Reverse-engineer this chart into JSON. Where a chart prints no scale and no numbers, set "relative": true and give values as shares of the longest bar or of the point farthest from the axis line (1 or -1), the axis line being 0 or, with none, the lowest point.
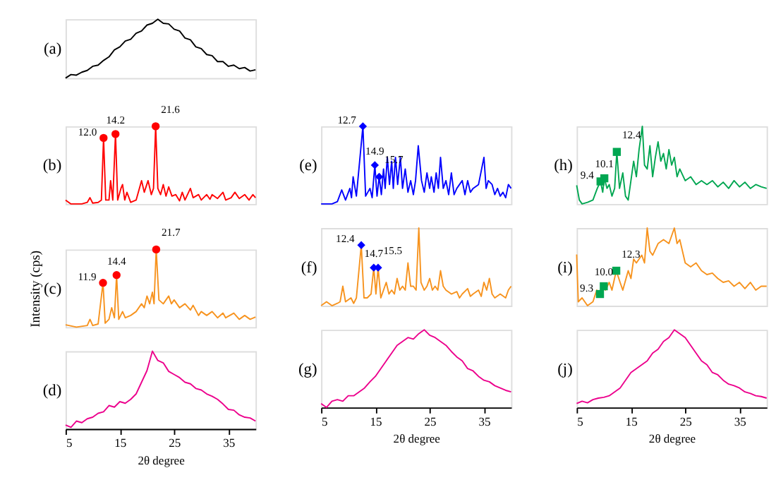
{
  "chart_data": [
    {
      "type": "line",
      "title": "(a)",
      "relative": true,
      "tick_labels": false,
      "xlim": [
        5,
        40
      ],
      "series": [
        {
          "color": "#000000",
          "x": [
            5,
            6,
            7,
            8,
            9,
            10,
            11,
            12,
            13,
            14,
            15,
            16,
            17,
            18,
            19,
            20,
            21,
            22,
            23,
            24,
            25,
            26,
            27,
            28,
            29,
            30,
            31,
            32,
            33,
            34,
            35,
            36,
            37,
            38,
            39,
            40
          ],
          "values": [
            0.0,
            0.06,
            0.05,
            0.1,
            0.13,
            0.2,
            0.22,
            0.3,
            0.36,
            0.48,
            0.53,
            0.63,
            0.66,
            0.76,
            0.8,
            0.9,
            0.93,
            1.0,
            0.93,
            0.92,
            0.83,
            0.8,
            0.68,
            0.65,
            0.53,
            0.5,
            0.4,
            0.38,
            0.28,
            0.28,
            0.2,
            0.22,
            0.16,
            0.18,
            0.12,
            0.14
          ]
        }
      ]
    },
    {
      "type": "line",
      "title": "(b)",
      "relative": true,
      "tick_labels": false,
      "xlim": [
        5,
        40
      ],
      "series": [
        {
          "color": "#ff0000",
          "x": [
            5,
            6,
            8,
            9,
            9.5,
            10,
            11,
            11.6,
            12.0,
            12.4,
            13,
            13.3,
            13.7,
            14.2,
            14.6,
            15.2,
            15.5,
            15.9,
            16.3,
            17,
            18,
            18.6,
            19,
            19.5,
            20.2,
            20.8,
            21.2,
            21.6,
            22,
            22.5,
            23,
            23.5,
            24,
            24.6,
            25.3,
            26,
            26.5,
            27,
            28,
            28.5,
            29.5,
            30,
            31,
            31.6,
            32,
            33,
            34,
            34.5,
            35.5,
            36.2,
            37,
            38,
            38.8,
            39.5,
            40
          ],
          "values": [
            0.05,
            0.0,
            0.0,
            0.02,
            0.08,
            0.01,
            0.02,
            0.05,
            0.85,
            0.05,
            0.05,
            0.3,
            0.05,
            0.9,
            0.05,
            0.2,
            0.25,
            0.05,
            0.15,
            0.02,
            0.05,
            0.2,
            0.3,
            0.15,
            0.3,
            0.12,
            0.2,
            1.0,
            0.2,
            0.12,
            0.25,
            0.1,
            0.22,
            0.1,
            0.12,
            0.04,
            0.15,
            0.05,
            0.2,
            0.08,
            0.12,
            0.05,
            0.12,
            0.06,
            0.12,
            0.07,
            0.15,
            0.05,
            0.08,
            0.15,
            0.07,
            0.12,
            0.05,
            0.12,
            0.08
          ]
        },
        {
          "type": "scatter",
          "marker": "circle",
          "color": "#ff0000",
          "x": [
            12.0,
            14.2,
            21.6
          ],
          "values": [
            0.85,
            0.9,
            1.0
          ]
        }
      ],
      "annotations": [
        {
          "text": "12.0",
          "x": 12.0,
          "y": 0.85
        },
        {
          "text": "14.2",
          "x": 14.2,
          "y": 0.9
        },
        {
          "text": "21.6",
          "x": 21.6,
          "y": 1.0
        }
      ]
    },
    {
      "type": "line",
      "title": "(c)",
      "relative": true,
      "tick_labels": false,
      "xlim": [
        5,
        40
      ],
      "ylabel": "Intensity (cps)",
      "series": [
        {
          "color": "#f7931e",
          "x": [
            5,
            7,
            9,
            9.5,
            10,
            11,
            11.9,
            12.3,
            13,
            13.5,
            14,
            14.4,
            14.8,
            15.5,
            16,
            17,
            18,
            19,
            19.5,
            20,
            20.5,
            21,
            21.3,
            21.7,
            22.2,
            23,
            24,
            24.5,
            25,
            26,
            27,
            28,
            28.5,
            29.5,
            30,
            31,
            32,
            33,
            34,
            34.5,
            36,
            37,
            38,
            39,
            40
          ],
          "values": [
            0.03,
            0.0,
            0.02,
            0.1,
            0.02,
            0.04,
            0.57,
            0.05,
            0.1,
            0.25,
            0.12,
            0.67,
            0.1,
            0.2,
            0.12,
            0.15,
            0.2,
            0.3,
            0.25,
            0.4,
            0.3,
            0.45,
            0.3,
            1.0,
            0.35,
            0.3,
            0.4,
            0.3,
            0.35,
            0.25,
            0.3,
            0.22,
            0.28,
            0.15,
            0.2,
            0.15,
            0.2,
            0.12,
            0.18,
            0.12,
            0.18,
            0.1,
            0.15,
            0.1,
            0.13
          ]
        },
        {
          "type": "scatter",
          "marker": "circle",
          "color": "#ff0000",
          "x": [
            11.9,
            14.4,
            21.7
          ],
          "values": [
            0.57,
            0.67,
            1.0
          ]
        }
      ],
      "annotations": [
        {
          "text": "11.9",
          "x": 11.9,
          "y": 0.57
        },
        {
          "text": "14.4",
          "x": 14.4,
          "y": 0.67
        },
        {
          "text": "21.7",
          "x": 21.7,
          "y": 1.0
        }
      ]
    },
    {
      "type": "line",
      "title": "(d)",
      "relative": true,
      "tick_labels": "x",
      "xlim": [
        5,
        40
      ],
      "xticks": [
        5,
        15,
        25,
        35
      ],
      "xlabel": "2θ degree",
      "series": [
        {
          "color": "#ec008c",
          "x": [
            5,
            6,
            7,
            8,
            9,
            10,
            11,
            12,
            13,
            14,
            15,
            16,
            17,
            18,
            19,
            20,
            21,
            22,
            23,
            24,
            25,
            26,
            27,
            28,
            29,
            30,
            31,
            32,
            33,
            34,
            35,
            36,
            37,
            38,
            39,
            40
          ],
          "values": [
            0.05,
            0.02,
            0.1,
            0.08,
            0.13,
            0.15,
            0.2,
            0.22,
            0.3,
            0.28,
            0.35,
            0.33,
            0.38,
            0.45,
            0.6,
            0.75,
            1.0,
            0.88,
            0.85,
            0.74,
            0.7,
            0.66,
            0.6,
            0.58,
            0.52,
            0.5,
            0.45,
            0.42,
            0.38,
            0.32,
            0.25,
            0.24,
            0.18,
            0.15,
            0.14,
            0.1
          ]
        }
      ]
    },
    {
      "type": "line",
      "title": "(e)",
      "relative": true,
      "tick_labels": false,
      "xlim": [
        5,
        40
      ],
      "series": [
        {
          "color": "#0000ff",
          "x": [
            5,
            7,
            8,
            8.8,
            9.5,
            10.3,
            10.6,
            10.9,
            11.5,
            12.7,
            13.2,
            14.0,
            14.4,
            14.9,
            15.3,
            15.7,
            16.1,
            16.5,
            16.8,
            17.2,
            17.6,
            18,
            18.3,
            18.7,
            19.1,
            19.6,
            20,
            20.5,
            21,
            21.5,
            22,
            22.4,
            22.9,
            23.5,
            24,
            24.5,
            25,
            25.3,
            25.8,
            26.2,
            26.6,
            27,
            27.5,
            28,
            28.5,
            29,
            29.5,
            30,
            31,
            31.5,
            32,
            32.5,
            33,
            34,
            35,
            35.4,
            35.8,
            36.5,
            37,
            37.5,
            38,
            38.5,
            39,
            39.5,
            40
          ],
          "values": [
            0.0,
            0.0,
            0.03,
            0.18,
            0.05,
            0.2,
            0.08,
            0.35,
            0.1,
            1.0,
            0.1,
            0.2,
            0.08,
            0.5,
            0.1,
            0.35,
            0.12,
            0.45,
            0.2,
            0.6,
            0.25,
            0.55,
            0.2,
            0.6,
            0.25,
            0.6,
            0.2,
            0.45,
            0.15,
            0.3,
            0.12,
            0.3,
            0.75,
            0.3,
            0.15,
            0.4,
            0.2,
            0.35,
            0.15,
            0.4,
            0.2,
            0.6,
            0.2,
            0.3,
            0.12,
            0.4,
            0.12,
            0.2,
            0.3,
            0.12,
            0.3,
            0.15,
            0.2,
            0.25,
            0.6,
            0.2,
            0.3,
            0.25,
            0.12,
            0.2,
            0.1,
            0.15,
            0.08,
            0.25,
            0.2
          ]
        },
        {
          "type": "scatter",
          "marker": "diamond",
          "color": "#0000ff",
          "x": [
            12.7,
            14.9,
            15.7
          ],
          "values": [
            1.0,
            0.5,
            0.35
          ]
        }
      ],
      "annotations": [
        {
          "text": "12.7",
          "x": 12.7,
          "y": 1.0
        },
        {
          "text": "14.9",
          "x": 14.9,
          "y": 0.5
        },
        {
          "text": "15.7",
          "x": 15.7,
          "y": 0.35
        }
      ]
    },
    {
      "type": "line",
      "title": "(f)",
      "relative": true,
      "tick_labels": false,
      "xlim": [
        5,
        40
      ],
      "series": [
        {
          "color": "#f7931e",
          "x": [
            5,
            6,
            7,
            8,
            8.5,
            9,
            9.5,
            10.5,
            11,
            11.5,
            12.4,
            12.9,
            13.5,
            14.2,
            14.7,
            15.1,
            15.5,
            16,
            16.5,
            17,
            17.5,
            18,
            18.5,
            19,
            19.5,
            20,
            20.5,
            21,
            21.5,
            22,
            22.5,
            23,
            23.4,
            24,
            24.5,
            25,
            25.5,
            26,
            26.5,
            27,
            27.5,
            28,
            29,
            30,
            30.5,
            31,
            32,
            32.5,
            33,
            34,
            34.5,
            35,
            35.5,
            36,
            36.5,
            37,
            38,
            39,
            39.5,
            40
          ],
          "values": [
            0.0,
            0.05,
            0.0,
            0.03,
            0.05,
            0.25,
            0.05,
            0.1,
            0.03,
            0.1,
            0.78,
            0.1,
            0.1,
            0.15,
            0.49,
            0.15,
            0.49,
            0.1,
            0.2,
            0.3,
            0.15,
            0.2,
            0.15,
            0.35,
            0.2,
            0.25,
            0.2,
            0.55,
            0.25,
            0.25,
            0.2,
            1.0,
            0.3,
            0.2,
            0.25,
            0.35,
            0.2,
            0.25,
            0.2,
            0.45,
            0.25,
            0.2,
            0.15,
            0.18,
            0.1,
            0.15,
            0.22,
            0.12,
            0.15,
            0.2,
            0.12,
            0.3,
            0.2,
            0.35,
            0.15,
            0.1,
            0.15,
            0.1,
            0.2,
            0.25
          ]
        },
        {
          "type": "scatter",
          "marker": "diamond",
          "color": "#0000ff",
          "x": [
            12.4,
            14.7,
            15.5
          ],
          "values": [
            0.78,
            0.49,
            0.49
          ]
        }
      ],
      "annotations": [
        {
          "text": "12.4",
          "x": 12.4,
          "y": 0.78
        },
        {
          "text": "14.7",
          "x": 14.7,
          "y": 0.49
        },
        {
          "text": "15.5",
          "x": 15.5,
          "y": 0.49
        }
      ]
    },
    {
      "type": "line",
      "title": "(g)",
      "relative": true,
      "tick_labels": "x",
      "xlim": [
        5,
        40
      ],
      "xticks": [
        5,
        15,
        25,
        35
      ],
      "xlabel": "2θ degree",
      "series": [
        {
          "color": "#ec008c",
          "x": [
            5,
            6,
            7,
            8,
            9,
            10,
            11,
            12,
            13,
            14,
            15,
            16,
            17,
            18,
            19,
            20,
            21,
            22,
            23,
            24,
            25,
            26,
            27,
            28,
            29,
            30,
            31,
            32,
            33,
            34,
            35,
            36,
            37,
            38,
            39,
            40
          ],
          "values": [
            0.05,
            0.0,
            0.08,
            0.1,
            0.08,
            0.15,
            0.15,
            0.2,
            0.25,
            0.33,
            0.4,
            0.5,
            0.6,
            0.7,
            0.8,
            0.85,
            0.9,
            0.88,
            0.95,
            1.0,
            0.93,
            0.9,
            0.85,
            0.8,
            0.72,
            0.65,
            0.6,
            0.5,
            0.47,
            0.4,
            0.35,
            0.33,
            0.28,
            0.25,
            0.22,
            0.2
          ]
        }
      ]
    },
    {
      "type": "line",
      "title": "(h)",
      "relative": true,
      "tick_labels": false,
      "xlim": [
        5,
        40
      ],
      "series": [
        {
          "color": "#00a651",
          "x": [
            5,
            5.5,
            6,
            7,
            8,
            8.8,
            9.4,
            9.8,
            10.1,
            10.6,
            11,
            11.5,
            12,
            12.4,
            12.9,
            13.5,
            14,
            14.5,
            15,
            15.5,
            16,
            16.5,
            17.1,
            17.5,
            18,
            18.5,
            19,
            19.5,
            20,
            20.5,
            21,
            21.5,
            22,
            22.5,
            23,
            23.5,
            24,
            25,
            26,
            27,
            28,
            29,
            30,
            31,
            32,
            33,
            34,
            35,
            36,
            37,
            38,
            39,
            40
          ],
          "values": [
            0.24,
            0.05,
            0.0,
            0.02,
            0.05,
            0.2,
            0.29,
            0.15,
            0.33,
            0.2,
            0.25,
            0.1,
            0.2,
            0.67,
            0.2,
            0.4,
            0.1,
            0.05,
            0.3,
            0.55,
            0.35,
            0.7,
            1.0,
            0.5,
            0.45,
            0.75,
            0.35,
            0.6,
            0.8,
            0.55,
            0.65,
            0.45,
            0.7,
            0.5,
            0.6,
            0.35,
            0.45,
            0.3,
            0.35,
            0.25,
            0.3,
            0.25,
            0.3,
            0.22,
            0.28,
            0.2,
            0.3,
            0.22,
            0.28,
            0.2,
            0.25,
            0.22,
            0.2
          ]
        },
        {
          "type": "scatter",
          "marker": "square",
          "color": "#00a651",
          "x": [
            9.4,
            10.1,
            12.4
          ],
          "values": [
            0.29,
            0.33,
            0.67
          ]
        }
      ],
      "annotations": [
        {
          "text": "9.4",
          "x": 9.4,
          "y": 0.29
        },
        {
          "text": "10.1",
          "x": 10.1,
          "y": 0.33
        },
        {
          "text": "12.4",
          "x": 12.4,
          "y": 0.67
        }
      ]
    },
    {
      "type": "line",
      "title": "(i)",
      "relative": true,
      "tick_labels": false,
      "xlim": [
        5,
        40
      ],
      "series": [
        {
          "color": "#f7931e",
          "x": [
            5,
            5.3,
            6,
            7,
            8,
            8.7,
            9.3,
            9.8,
            10.3,
            11,
            11.5,
            12.3,
            13,
            13.5,
            14.5,
            15,
            15.5,
            16,
            17,
            17.5,
            18,
            18.5,
            19,
            20,
            21,
            22,
            22.5,
            23,
            23.5,
            24,
            25,
            26,
            27,
            28,
            29,
            30,
            31,
            32,
            33,
            34,
            35,
            36,
            37,
            38,
            39,
            40
          ],
          "values": [
            0.66,
            0.05,
            0.1,
            0.0,
            0.05,
            0.2,
            0.15,
            0.25,
            0.2,
            0.3,
            0.2,
            0.45,
            0.3,
            0.2,
            0.45,
            0.35,
            0.6,
            0.55,
            0.65,
            0.55,
            1.0,
            0.7,
            0.65,
            0.8,
            0.85,
            0.8,
            0.9,
            1.0,
            0.8,
            0.85,
            0.55,
            0.5,
            0.55,
            0.45,
            0.4,
            0.42,
            0.35,
            0.3,
            0.32,
            0.25,
            0.3,
            0.22,
            0.3,
            0.2,
            0.25,
            0.25
          ]
        },
        {
          "type": "scatter",
          "marker": "square",
          "color": "#00a651",
          "x": [
            9.3,
            10.0,
            12.3
          ],
          "values": [
            0.15,
            0.25,
            0.45
          ]
        }
      ],
      "annotations": [
        {
          "text": "9.3",
          "x": 9.3,
          "y": 0.15
        },
        {
          "text": "10.0",
          "x": 10.0,
          "y": 0.25
        },
        {
          "text": "12.3",
          "x": 12.3,
          "y": 0.45
        }
      ]
    },
    {
      "type": "line",
      "title": "(j)",
      "relative": true,
      "tick_labels": "x",
      "xlim": [
        5,
        40
      ],
      "xticks": [
        5,
        15,
        25,
        35
      ],
      "xlabel": "2θ degree",
      "series": [
        {
          "color": "#ec008c",
          "x": [
            5,
            6,
            7,
            8,
            9,
            10,
            11,
            12,
            13,
            14,
            15,
            16,
            17,
            18,
            19,
            20,
            21,
            22,
            23,
            24,
            25,
            26,
            27,
            28,
            29,
            30,
            31,
            32,
            33,
            34,
            35,
            36,
            37,
            38,
            39,
            40
          ],
          "values": [
            0.05,
            0.08,
            0.06,
            0.1,
            0.12,
            0.13,
            0.15,
            0.2,
            0.25,
            0.35,
            0.45,
            0.5,
            0.55,
            0.6,
            0.7,
            0.75,
            0.85,
            0.9,
            1.0,
            0.95,
            0.9,
            0.8,
            0.7,
            0.6,
            0.55,
            0.45,
            0.42,
            0.35,
            0.3,
            0.28,
            0.25,
            0.2,
            0.18,
            0.15,
            0.14,
            0.12
          ]
        }
      ]
    }
  ]
}
